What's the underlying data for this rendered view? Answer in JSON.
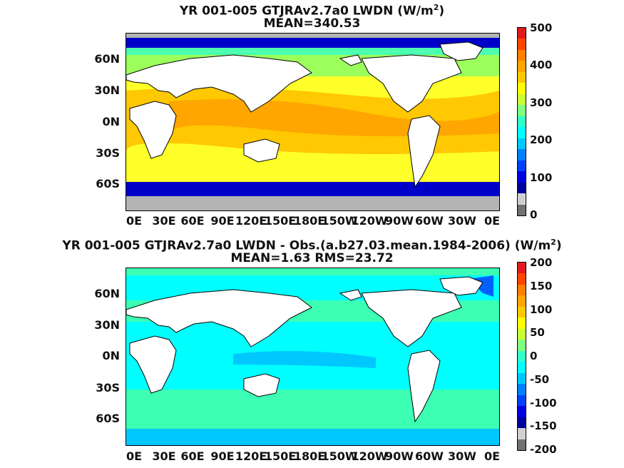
{
  "panels": [
    {
      "title_line1": "YR 001-005 GTJRAv2.7a0 LWDN (W/m",
      "title_sup": "2",
      "title_close": ")",
      "title_line2": "MEAN=340.53",
      "lat_labels": [
        "60N",
        "30N",
        "0N",
        "30S",
        "60S"
      ],
      "lon_labels": [
        "0E",
        "30E",
        "60E",
        "90E",
        "120E",
        "150E",
        "180E",
        "150W",
        "120W",
        "90W",
        "60W",
        "30W",
        "0E"
      ],
      "colorbar_ticks": [
        "500",
        "400",
        "300",
        "200",
        "100",
        "0"
      ],
      "colorbar_colors": [
        "#e31a1c",
        "#ff4500",
        "#ff7f00",
        "#ffa500",
        "#ffc800",
        "#ffff00",
        "#c8ff32",
        "#7fff7f",
        "#32ffc8",
        "#00ffff",
        "#00c8ff",
        "#0080ff",
        "#0040ff",
        "#0000e0",
        "#00009a",
        "#d0d0d0",
        "#707070"
      ],
      "palette": {
        "ocean_hot": "#ffa600",
        "ocean_warm": "#ffc800",
        "ocean_mid": "#ffff2a",
        "ocean_cool": "#9cff5c",
        "ocean_cold": "#4dffb0",
        "polar": "#0000c8",
        "ice": "#b4b4b4",
        "land": "#ffffff"
      }
    },
    {
      "title_line1": "YR 001-005 GTJRAv2.7a0 LWDN - Obs.(a.b27.03.mean.1984-2006) (W/m",
      "title_sup": "2",
      "title_close": ")",
      "title_line2": "MEAN=1.63 RMS=23.72",
      "lat_labels": [
        "60N",
        "30N",
        "0N",
        "30S",
        "60S"
      ],
      "lon_labels": [
        "0E",
        "30E",
        "60E",
        "90E",
        "120E",
        "150E",
        "180E",
        "150W",
        "120W",
        "90W",
        "60W",
        "30W",
        "0E"
      ],
      "colorbar_ticks": [
        "200",
        "150",
        "100",
        "50",
        "0",
        "-50",
        "-100",
        "-150",
        "-200"
      ],
      "colorbar_colors": [
        "#e31a1c",
        "#ff4500",
        "#ff7f00",
        "#ffa500",
        "#ffc800",
        "#ffff00",
        "#c8ff32",
        "#7fff7f",
        "#32ffc8",
        "#00ffff",
        "#00c8ff",
        "#0080ff",
        "#0040ff",
        "#0000e0",
        "#00009a",
        "#d0d0d0",
        "#707070"
      ],
      "palette": {
        "ocean_base": "#00ffff",
        "ocean_green": "#3cffb4",
        "ocean_blue": "#00c8ff",
        "polar": "#0060ff",
        "land": "#ffffff"
      }
    }
  ]
}
